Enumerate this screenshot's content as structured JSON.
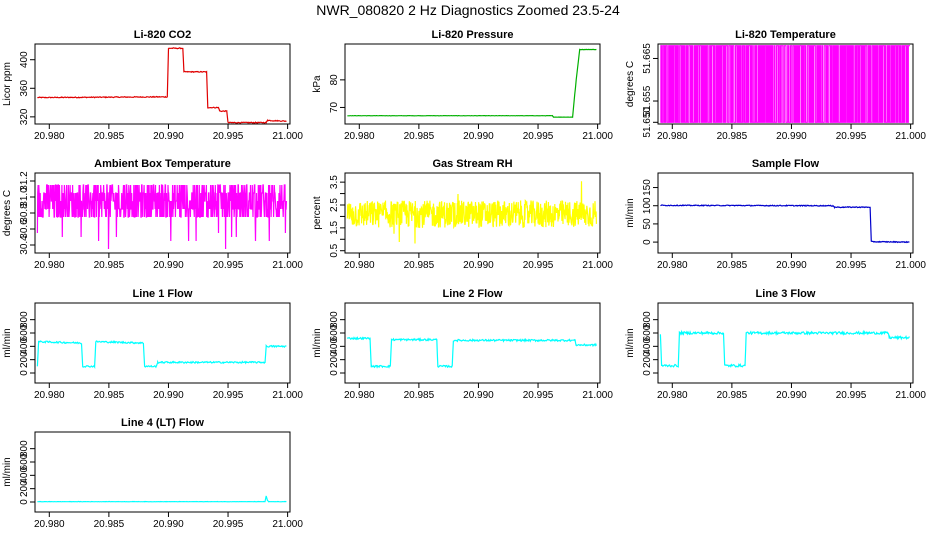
{
  "title": "NWR_080820  2 Hz Diagnostics Zoomed 23.5-24",
  "chart_data": [
    {
      "type": "line",
      "title": "Li-820 CO2",
      "ylabel": "Licor ppm",
      "color": "#e00000",
      "xlim": [
        20.9788,
        21.0002
      ],
      "ylim": [
        310,
        422
      ],
      "xticks": [
        "20.980",
        "20.985",
        "20.990",
        "20.995",
        "21.000"
      ],
      "xtick_values": [
        20.98,
        20.985,
        20.99,
        20.995,
        21.0
      ],
      "yticks": [
        "320",
        "360",
        "400"
      ],
      "ytick_values": [
        320,
        360,
        400
      ],
      "style": "step",
      "noise": 0.6,
      "x": [
        20.979,
        20.9899,
        20.99,
        20.9912,
        20.9913,
        20.9932,
        20.9933,
        20.9942,
        20.9943,
        20.9949,
        20.995,
        20.9982,
        20.9983,
        20.9999
      ],
      "y": [
        347,
        348,
        416,
        416,
        383,
        383,
        333,
        333,
        328,
        328,
        312,
        312,
        315,
        314
      ]
    },
    {
      "type": "line",
      "title": "Li-820 Pressure",
      "ylabel": "kPa",
      "color": "#00b000",
      "xlim": [
        20.9788,
        21.0002
      ],
      "ylim": [
        64,
        93
      ],
      "xticks": [
        "20.980",
        "20.985",
        "20.990",
        "20.995",
        "21.000"
      ],
      "xtick_values": [
        20.98,
        20.985,
        20.99,
        20.995,
        21.0
      ],
      "yticks": [
        "70",
        "80"
      ],
      "ytick_values": [
        70,
        80
      ],
      "style": "step",
      "noise": 0.05,
      "x": [
        20.979,
        20.9962,
        20.9963,
        20.9979,
        20.9982,
        20.9985,
        20.9999
      ],
      "y": [
        67,
        67,
        66.5,
        66.5,
        80,
        91,
        91
      ]
    },
    {
      "type": "line",
      "title": "Li-820 Temperature",
      "ylabel": "degrees C",
      "color": "#ff00ff",
      "xlim": [
        20.9788,
        21.0002
      ],
      "ylim": [
        51.6496,
        51.6684
      ],
      "xticks": [
        "20.980",
        "20.985",
        "20.990",
        "20.995",
        "21.000"
      ],
      "xtick_values": [
        20.98,
        20.985,
        20.99,
        20.995,
        21.0
      ],
      "yticks": [
        "51.650",
        "51.655",
        "51.665"
      ],
      "ytick_values": [
        51.65,
        51.655,
        51.665
      ],
      "style": "binary",
      "low": 51.65,
      "high": 51.668,
      "x_range": [
        20.979,
        20.9999
      ]
    },
    {
      "type": "line",
      "title": "Ambient Box Temperature",
      "ylabel": "degrees C",
      "color": "#ff00ff",
      "xlim": [
        20.9788,
        21.0002
      ],
      "ylim": [
        30.3,
        31.3
      ],
      "xticks": [
        "20.980",
        "20.985",
        "20.990",
        "20.995",
        "21.000"
      ],
      "xtick_values": [
        20.98,
        20.985,
        20.99,
        20.995,
        21.0
      ],
      "yticks": [
        "30.4",
        "30.6",
        "30.8",
        "31.0",
        "31.2"
      ],
      "ytick_values": [
        30.4,
        30.6,
        30.8,
        31.0,
        31.2
      ],
      "style": "levels",
      "levels": [
        30.75,
        30.85,
        30.95,
        31.05,
        31.15
      ],
      "dips": [
        30.5,
        30.35,
        30.45,
        30.55
      ],
      "x_range": [
        20.979,
        20.9999
      ]
    },
    {
      "type": "line",
      "title": "Gas Stream RH",
      "ylabel": "percent",
      "color": "#ffff00",
      "xlim": [
        20.9788,
        21.0002
      ],
      "ylim": [
        0.4,
        3.9
      ],
      "xticks": [
        "20.980",
        "20.985",
        "20.990",
        "20.995",
        "21.000"
      ],
      "xtick_values": [
        20.98,
        20.985,
        20.99,
        20.995,
        21.0
      ],
      "yticks": [
        "0.5",
        "1.5",
        "2.5",
        "3.5"
      ],
      "ytick_values": [
        0.5,
        1.5,
        2.5,
        3.5
      ],
      "minor_yticks": [
        1.0,
        2.0,
        3.0
      ],
      "style": "noise",
      "center": 2.1,
      "spread": 0.6,
      "x_range": [
        20.979,
        20.9999
      ]
    },
    {
      "type": "line",
      "title": "Sample Flow",
      "ylabel": "ml/min",
      "color": "#0000cc",
      "xlim": [
        20.9788,
        21.0002
      ],
      "ylim": [
        -30,
        190
      ],
      "xticks": [
        "20.980",
        "20.985",
        "20.990",
        "20.995",
        "21.000"
      ],
      "xtick_values": [
        20.98,
        20.985,
        20.99,
        20.995,
        21.0
      ],
      "yticks": [
        "0",
        "50",
        "100",
        "150"
      ],
      "ytick_values": [
        0,
        50,
        100,
        150
      ],
      "style": "step",
      "noise": 1.2,
      "x": [
        20.979,
        20.9935,
        20.9936,
        20.9966,
        20.9967,
        20.9999
      ],
      "y": [
        101,
        100,
        96,
        96,
        1,
        0
      ]
    },
    {
      "type": "line",
      "title": "Line 1 Flow",
      "ylabel": "ml/min",
      "color": "#00ffff",
      "xlim": [
        20.9788,
        21.0002
      ],
      "ylim": [
        -150,
        1050
      ],
      "xticks": [
        "20.980",
        "20.985",
        "20.990",
        "20.995",
        "21.000"
      ],
      "xtick_values": [
        20.98,
        20.985,
        20.99,
        20.995,
        21.0
      ],
      "yticks": [
        "0",
        "200",
        "400",
        "600",
        "800"
      ],
      "ytick_values": [
        0,
        200,
        400,
        600,
        800
      ],
      "style": "step",
      "noise": 12,
      "x": [
        20.979,
        20.9791,
        20.9827,
        20.9828,
        20.9838,
        20.9839,
        20.9879,
        20.988,
        20.989,
        20.9891,
        20.9981,
        20.9982,
        20.9999
      ],
      "y": [
        110,
        470,
        450,
        100,
        100,
        470,
        450,
        100,
        100,
        160,
        160,
        400,
        400
      ]
    },
    {
      "type": "line",
      "title": "Line 2 Flow",
      "ylabel": "ml/min",
      "color": "#00ffff",
      "xlim": [
        20.9788,
        21.0002
      ],
      "ylim": [
        -150,
        1050
      ],
      "xticks": [
        "20.980",
        "20.985",
        "20.990",
        "20.995",
        "21.000"
      ],
      "xtick_values": [
        20.98,
        20.985,
        20.99,
        20.995,
        21.0
      ],
      "yticks": [
        "0",
        "200",
        "400",
        "600",
        "800"
      ],
      "ytick_values": [
        0,
        200,
        400,
        600,
        800
      ],
      "style": "step",
      "noise": 14,
      "x": [
        20.979,
        20.9809,
        20.981,
        20.9826,
        20.9827,
        20.9865,
        20.9866,
        20.9878,
        20.9879,
        20.9981,
        20.9982,
        20.9999
      ],
      "y": [
        520,
        520,
        100,
        100,
        500,
        500,
        100,
        100,
        490,
        490,
        420,
        420
      ]
    },
    {
      "type": "line",
      "title": "Line 3 Flow",
      "ylabel": "ml/min",
      "color": "#00ffff",
      "xlim": [
        20.9788,
        21.0002
      ],
      "ylim": [
        -150,
        1050
      ],
      "xticks": [
        "20.980",
        "20.985",
        "20.990",
        "20.995",
        "21.000"
      ],
      "xtick_values": [
        20.98,
        20.985,
        20.99,
        20.995,
        21.0
      ],
      "yticks": [
        "0",
        "200",
        "400",
        "600",
        "800"
      ],
      "ytick_values": [
        0,
        200,
        400,
        600,
        800
      ],
      "style": "step",
      "noise": 18,
      "x": [
        20.979,
        20.9791,
        20.9805,
        20.9806,
        20.9843,
        20.9844,
        20.9861,
        20.9862,
        20.9981,
        20.9982,
        20.9999
      ],
      "y": [
        580,
        110,
        110,
        600,
        600,
        110,
        110,
        600,
        600,
        530,
        530
      ]
    },
    {
      "type": "line",
      "title": "Line 4 (LT) Flow",
      "ylabel": "ml/min",
      "color": "#00ffff",
      "xlim": [
        20.9788,
        21.0002
      ],
      "ylim": [
        -150,
        1050
      ],
      "xticks": [
        "20.980",
        "20.985",
        "20.990",
        "20.995",
        "21.000"
      ],
      "xtick_values": [
        20.98,
        20.985,
        20.99,
        20.995,
        21.0
      ],
      "yticks": [
        "0",
        "200",
        "400",
        "600",
        "800"
      ],
      "ytick_values": [
        0,
        200,
        400,
        600,
        800
      ],
      "style": "step",
      "noise": 2,
      "x": [
        20.979,
        20.9981,
        20.9982,
        20.9983,
        20.9984,
        20.9999
      ],
      "y": [
        5,
        5,
        90,
        25,
        5,
        5
      ]
    }
  ]
}
